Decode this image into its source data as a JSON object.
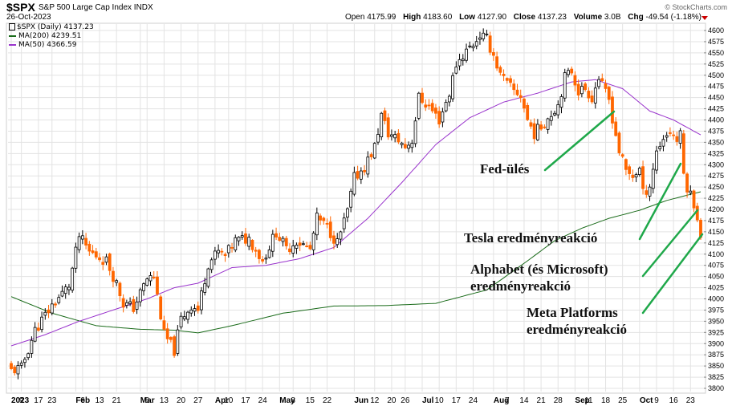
{
  "header": {
    "ticker": "$SPX",
    "company": "S&P 500 Large Cap Index",
    "exchange": "INDX",
    "date": "26-Oct-2023",
    "credit": "© StockCharts.com",
    "open_label": "Open",
    "open": "4175.99",
    "high_label": "High",
    "high": "4183.60",
    "low_label": "Low",
    "low": "4127.90",
    "close_label": "Close",
    "close": "4137.23",
    "volume_label": "Volume",
    "volume": "3.0B",
    "chg_label": "Chg",
    "chg": "-49.54 (-1.18%)"
  },
  "legend": {
    "price": "$SPX (Daily) 4137.23",
    "ma200": "MA(200) 4239.51",
    "ma50": "MA(50) 4366.59"
  },
  "colors": {
    "up": "#000000",
    "down": "#ff6600",
    "ma200": "#1a6b1a",
    "ma50": "#9933cc",
    "arrow": "#1fa84a",
    "grid": "#e3e3e3"
  },
  "annotations": [
    {
      "id": "fed",
      "text": "Fed-ülés"
    },
    {
      "id": "tesla",
      "text": "Tesla eredményreakció"
    },
    {
      "id": "alphabet",
      "text": "Alphabet (és Microsoft) eredményreakció"
    },
    {
      "id": "meta",
      "text": "Meta Platforms eredményreakció"
    }
  ],
  "chart_data": {
    "type": "candlestick",
    "title": "$SPX S&P 500 Large Cap Index INDX",
    "ylim": [
      3780,
      4610
    ],
    "y_ticks": [
      3800,
      3825,
      3850,
      3875,
      3900,
      3925,
      3950,
      3975,
      4000,
      4025,
      4050,
      4075,
      4100,
      4125,
      4150,
      4175,
      4200,
      4225,
      4250,
      4275,
      4300,
      4325,
      4350,
      4375,
      4400,
      4425,
      4450,
      4475,
      4500,
      4525,
      4550,
      4575,
      4600
    ],
    "x_ticks": [
      {
        "label": "2023",
        "bold": true,
        "day": 0
      },
      {
        "label": "9",
        "day": 3
      },
      {
        "label": "17",
        "day": 8
      },
      {
        "label": "23",
        "day": 12
      },
      {
        "label": "Feb",
        "bold": true,
        "day": 19
      },
      {
        "label": "6",
        "day": 21
      },
      {
        "label": "13",
        "day": 26
      },
      {
        "label": "21",
        "day": 31
      },
      {
        "label": "Mar",
        "bold": true,
        "day": 38
      },
      {
        "label": "6",
        "day": 40
      },
      {
        "label": "13",
        "day": 45
      },
      {
        "label": "20",
        "day": 50
      },
      {
        "label": "27",
        "day": 55
      },
      {
        "label": "Apr",
        "bold": true,
        "day": 60
      },
      {
        "label": "10",
        "day": 64
      },
      {
        "label": "17",
        "day": 69
      },
      {
        "label": "24",
        "day": 74
      },
      {
        "label": "May",
        "bold": true,
        "day": 79
      },
      {
        "label": "8",
        "day": 83
      },
      {
        "label": "15",
        "day": 88
      },
      {
        "label": "22",
        "day": 93
      },
      {
        "label": "Jun",
        "bold": true,
        "day": 101
      },
      {
        "label": "12",
        "day": 107
      },
      {
        "label": "20",
        "day": 112
      },
      {
        "label": "26",
        "day": 116
      },
      {
        "label": "Jul",
        "bold": true,
        "day": 121
      },
      {
        "label": "10",
        "day": 126
      },
      {
        "label": "17",
        "day": 131
      },
      {
        "label": "24",
        "day": 136
      },
      {
        "label": "Aug",
        "bold": true,
        "day": 142
      },
      {
        "label": "7",
        "day": 146
      },
      {
        "label": "14",
        "day": 151
      },
      {
        "label": "21",
        "day": 156
      },
      {
        "label": "28",
        "day": 161
      },
      {
        "label": "Sep",
        "bold": true,
        "day": 166
      },
      {
        "label": "11",
        "day": 170
      },
      {
        "label": "18",
        "day": 175
      },
      {
        "label": "25",
        "day": 180
      },
      {
        "label": "Oct",
        "bold": true,
        "day": 185
      },
      {
        "label": "9",
        "day": 190
      },
      {
        "label": "16",
        "day": 195
      },
      {
        "label": "23",
        "day": 200
      }
    ],
    "date_range": [
      "2023-01-03",
      "2023-10-26"
    ],
    "trading_days": 204,
    "price_path": [
      [
        0,
        3840
      ],
      [
        3,
        3845
      ],
      [
        7,
        3930
      ],
      [
        12,
        3985
      ],
      [
        17,
        4030
      ],
      [
        20,
        4140
      ],
      [
        23,
        4105
      ],
      [
        28,
        4085
      ],
      [
        31,
        4035
      ],
      [
        33,
        3990
      ],
      [
        36,
        3980
      ],
      [
        40,
        4045
      ],
      [
        42,
        4050
      ],
      [
        45,
        3920
      ],
      [
        48,
        3885
      ],
      [
        50,
        3955
      ],
      [
        53,
        3985
      ],
      [
        55,
        3975
      ],
      [
        58,
        4080
      ],
      [
        61,
        4105
      ],
      [
        63,
        4095
      ],
      [
        66,
        4130
      ],
      [
        70,
        4135
      ],
      [
        74,
        4085
      ],
      [
        78,
        4150
      ],
      [
        81,
        4110
      ],
      [
        84,
        4130
      ],
      [
        88,
        4110
      ],
      [
        90,
        4180
      ],
      [
        93,
        4160
      ],
      [
        96,
        4125
      ],
      [
        99,
        4195
      ],
      [
        101,
        4270
      ],
      [
        104,
        4295
      ],
      [
        107,
        4340
      ],
      [
        109,
        4410
      ],
      [
        111,
        4370
      ],
      [
        114,
        4355
      ],
      [
        116,
        4340
      ],
      [
        118,
        4355
      ],
      [
        120,
        4450
      ],
      [
        123,
        4430
      ],
      [
        126,
        4400
      ],
      [
        129,
        4460
      ],
      [
        131,
        4525
      ],
      [
        134,
        4555
      ],
      [
        136,
        4570
      ],
      [
        138,
        4590
      ],
      [
        140,
        4580
      ],
      [
        142,
        4545
      ],
      [
        144,
        4500
      ],
      [
        146,
        4480
      ],
      [
        148,
        4465
      ],
      [
        150,
        4455
      ],
      [
        152,
        4400
      ],
      [
        154,
        4370
      ],
      [
        156,
        4385
      ],
      [
        158,
        4405
      ],
      [
        161,
        4435
      ],
      [
        163,
        4495
      ],
      [
        165,
        4510
      ],
      [
        167,
        4465
      ],
      [
        169,
        4470
      ],
      [
        171,
        4450
      ],
      [
        173,
        4495
      ],
      [
        174,
        4475
      ],
      [
        176,
        4445
      ],
      [
        177,
        4405
      ],
      [
        179,
        4330
      ],
      [
        181,
        4285
      ],
      [
        183,
        4275
      ],
      [
        185,
        4290
      ],
      [
        186,
        4235
      ],
      [
        188,
        4255
      ],
      [
        190,
        4330
      ],
      [
        192,
        4360
      ],
      [
        194,
        4375
      ],
      [
        196,
        4355
      ],
      [
        197,
        4365
      ],
      [
        198,
        4280
      ],
      [
        199,
        4250
      ],
      [
        201,
        4215
      ],
      [
        202,
        4185
      ],
      [
        203,
        4137
      ]
    ],
    "series": [
      {
        "name": "MA(200)",
        "current": 4239.51,
        "points": [
          [
            0,
            4005
          ],
          [
            12,
            3968
          ],
          [
            25,
            3940
          ],
          [
            38,
            3932
          ],
          [
            48,
            3930
          ],
          [
            55,
            3924
          ],
          [
            65,
            3940
          ],
          [
            80,
            3968
          ],
          [
            95,
            3984
          ],
          [
            110,
            3985
          ],
          [
            125,
            3990
          ],
          [
            140,
            4020
          ],
          [
            152,
            4085
          ],
          [
            160,
            4130
          ],
          [
            168,
            4158
          ],
          [
            176,
            4180
          ],
          [
            185,
            4198
          ],
          [
            193,
            4220
          ],
          [
            203,
            4239.51
          ]
        ]
      },
      {
        "name": "MA(50)",
        "current": 4366.59,
        "points": [
          [
            0,
            3895
          ],
          [
            10,
            3920
          ],
          [
            20,
            3950
          ],
          [
            30,
            3975
          ],
          [
            40,
            4000
          ],
          [
            48,
            4025
          ],
          [
            55,
            4035
          ],
          [
            65,
            4070
          ],
          [
            75,
            4075
          ],
          [
            85,
            4090
          ],
          [
            95,
            4115
          ],
          [
            105,
            4180
          ],
          [
            115,
            4260
          ],
          [
            125,
            4345
          ],
          [
            135,
            4405
          ],
          [
            145,
            4440
          ],
          [
            155,
            4460
          ],
          [
            165,
            4485
          ],
          [
            172,
            4490
          ],
          [
            180,
            4470
          ],
          [
            188,
            4420
          ],
          [
            195,
            4400
          ],
          [
            203,
            4366.59
          ]
        ]
      }
    ]
  }
}
